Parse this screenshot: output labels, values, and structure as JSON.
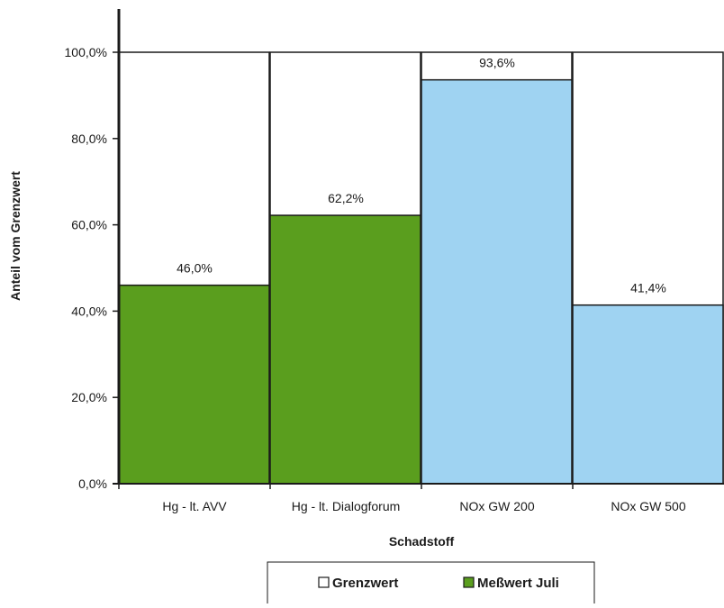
{
  "chart_data": {
    "type": "bar",
    "categories": [
      "Hg - lt. AVV",
      "Hg - lt. Dialogforum",
      "NOx GW 200",
      "NOx GW 500"
    ],
    "series": [
      {
        "name": "Grenzwert",
        "values": [
          100.0,
          100.0,
          100.0,
          100.0
        ]
      },
      {
        "name": "Meßwert Juli",
        "values": [
          46.0,
          62.2,
          93.6,
          41.4
        ]
      }
    ],
    "data_labels": [
      "46,0%",
      "62,2%",
      "93,6%",
      "41,4%"
    ],
    "bar_colors": [
      "#5a9e1e",
      "#5a9e1e",
      "#9fd3f2",
      "#9fd3f2"
    ],
    "limit_color": "#ffffff",
    "xlabel": "Schadstoff",
    "ylabel": "Anteil vom Grenzwert",
    "ylim": [
      0,
      100
    ],
    "yticks": [
      "0,0%",
      "20,0%",
      "40,0%",
      "60,0%",
      "80,0%",
      "100,0%"
    ],
    "grid": false,
    "legend_position": "bottom"
  }
}
